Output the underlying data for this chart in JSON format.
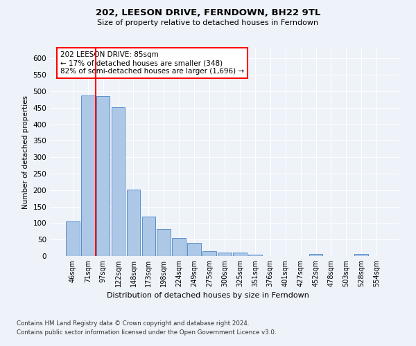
{
  "title": "202, LEESON DRIVE, FERNDOWN, BH22 9TL",
  "subtitle": "Size of property relative to detached houses in Ferndown",
  "xlabel": "Distribution of detached houses by size in Ferndown",
  "ylabel": "Number of detached properties",
  "categories": [
    "46sqm",
    "71sqm",
    "97sqm",
    "122sqm",
    "148sqm",
    "173sqm",
    "198sqm",
    "224sqm",
    "249sqm",
    "275sqm",
    "300sqm",
    "325sqm",
    "351sqm",
    "376sqm",
    "401sqm",
    "427sqm",
    "452sqm",
    "478sqm",
    "503sqm",
    "528sqm",
    "554sqm"
  ],
  "values": [
    104,
    487,
    486,
    452,
    201,
    119,
    82,
    55,
    40,
    15,
    10,
    10,
    5,
    0,
    0,
    0,
    6,
    0,
    0,
    7,
    0
  ],
  "bar_color": "#adc8e6",
  "bar_edge_color": "#5b8fc9",
  "vline_x": 1.5,
  "vline_color": "red",
  "annotation_text": "202 LEESON DRIVE: 85sqm\n← 17% of detached houses are smaller (348)\n82% of semi-detached houses are larger (1,696) →",
  "annotation_box_color": "white",
  "annotation_box_edge": "red",
  "ylim": [
    0,
    630
  ],
  "yticks": [
    0,
    50,
    100,
    150,
    200,
    250,
    300,
    350,
    400,
    450,
    500,
    550,
    600
  ],
  "footnote1": "Contains HM Land Registry data © Crown copyright and database right 2024.",
  "footnote2": "Contains public sector information licensed under the Open Government Licence v3.0.",
  "background_color": "#eef2f9",
  "grid_color": "white"
}
